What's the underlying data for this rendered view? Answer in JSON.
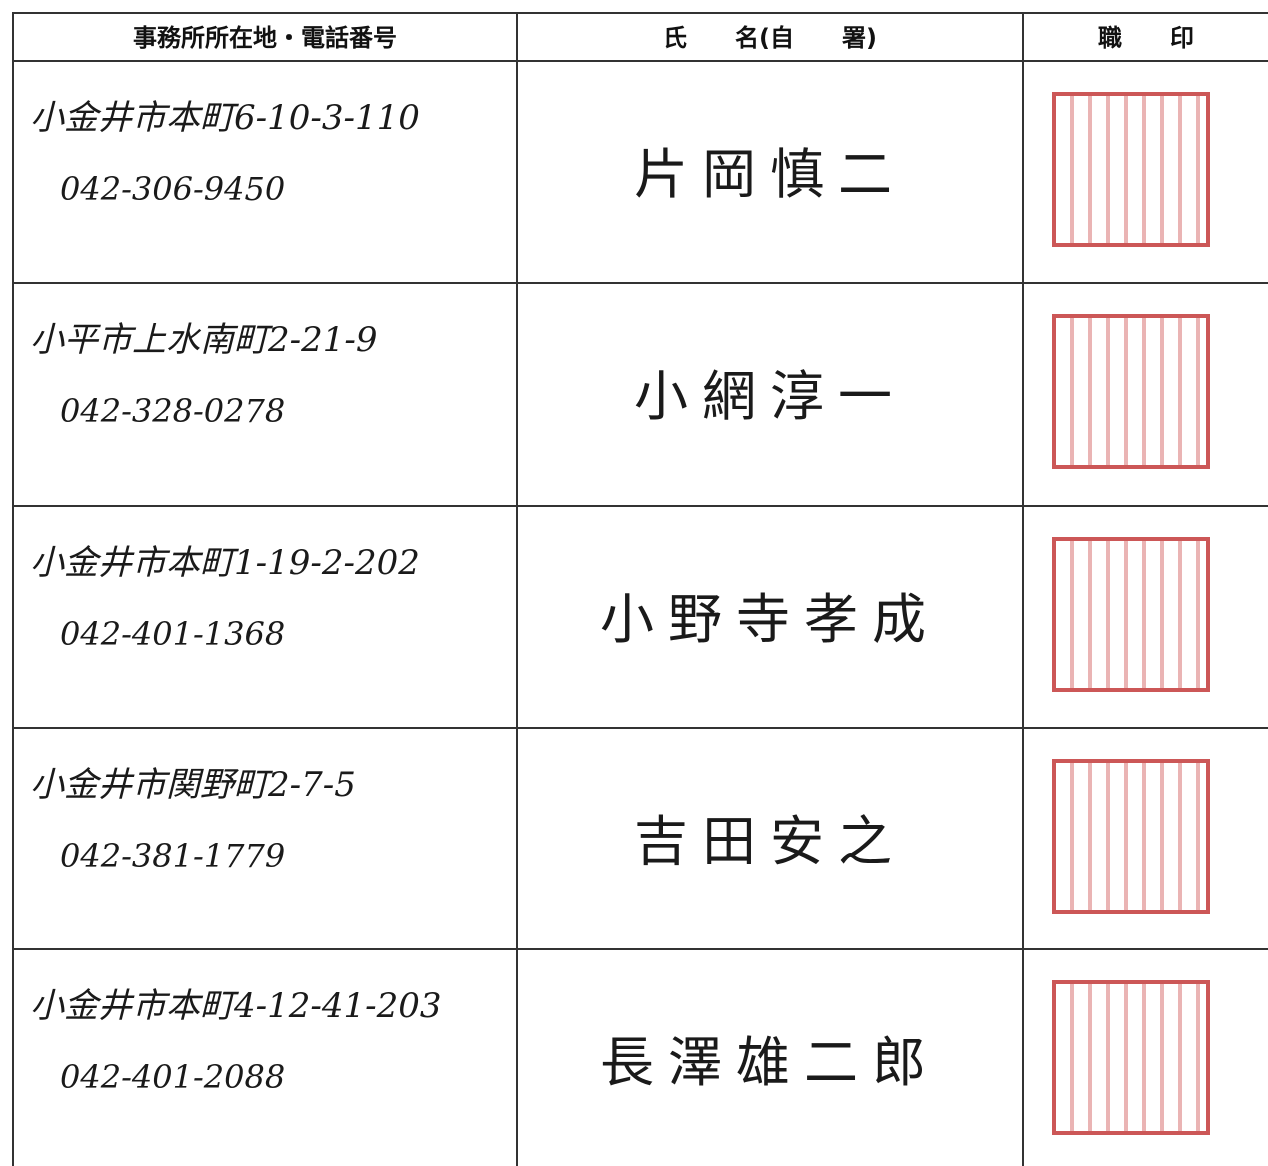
{
  "header": {
    "address": "事務所所在地・電話番号",
    "name": "氏　　名(自　　署)",
    "seal": "職　　印"
  },
  "rows": [
    {
      "address": "小金井市本町6-10-3-110",
      "phone": "042-306-9450",
      "name": "片岡慎二"
    },
    {
      "address": "小平市上水南町2-21-9",
      "phone": "042-328-0278",
      "name": "小網淳一"
    },
    {
      "address": "小金井市本町1-19-2-202",
      "phone": "042-401-1368",
      "name": "小野寺孝成"
    },
    {
      "address": "小金井市関野町2-7-5",
      "phone": "042-381-1779",
      "name": "吉田安之"
    },
    {
      "address": "小金井市本町4-12-41-203",
      "phone": "042-401-2088",
      "name": "長澤雄二郎"
    }
  ]
}
